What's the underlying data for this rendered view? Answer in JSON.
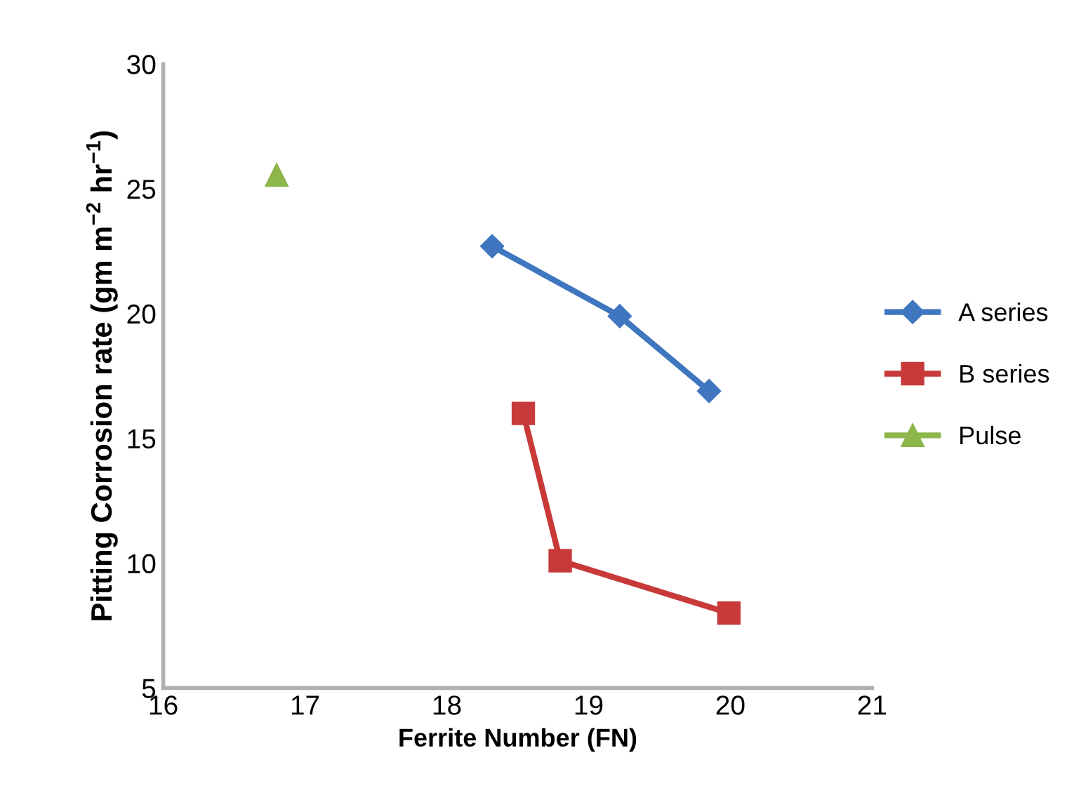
{
  "chart_data": {
    "type": "line",
    "xlabel": "Ferrite Number (FN)",
    "ylabel": "Pitting Corrosion rate (gm m$^{−2}$ hr$^{−1}$)",
    "xlim": [
      16,
      21
    ],
    "xticks": [
      16,
      17,
      18,
      19,
      20,
      21
    ],
    "ylim": [
      5,
      30
    ],
    "yticks": [
      5,
      10,
      15,
      20,
      25,
      30
    ],
    "grid": false,
    "legend": "right",
    "series": [
      {
        "name": "A series",
        "color": "#3f76bf",
        "marker": "diamond",
        "x": [
          18.32,
          19.22,
          19.85
        ],
        "values": [
          22.7,
          19.9,
          16.9
        ]
      },
      {
        "name": "B series",
        "color": "#c83a3a",
        "marker": "square",
        "x": [
          18.54,
          18.8,
          19.99
        ],
        "values": [
          16.0,
          10.1,
          8.0
        ]
      },
      {
        "name": "Pulse",
        "color": "#8db64b",
        "marker": "triangle",
        "x": [
          16.8
        ],
        "values": [
          25.55
        ]
      }
    ]
  }
}
